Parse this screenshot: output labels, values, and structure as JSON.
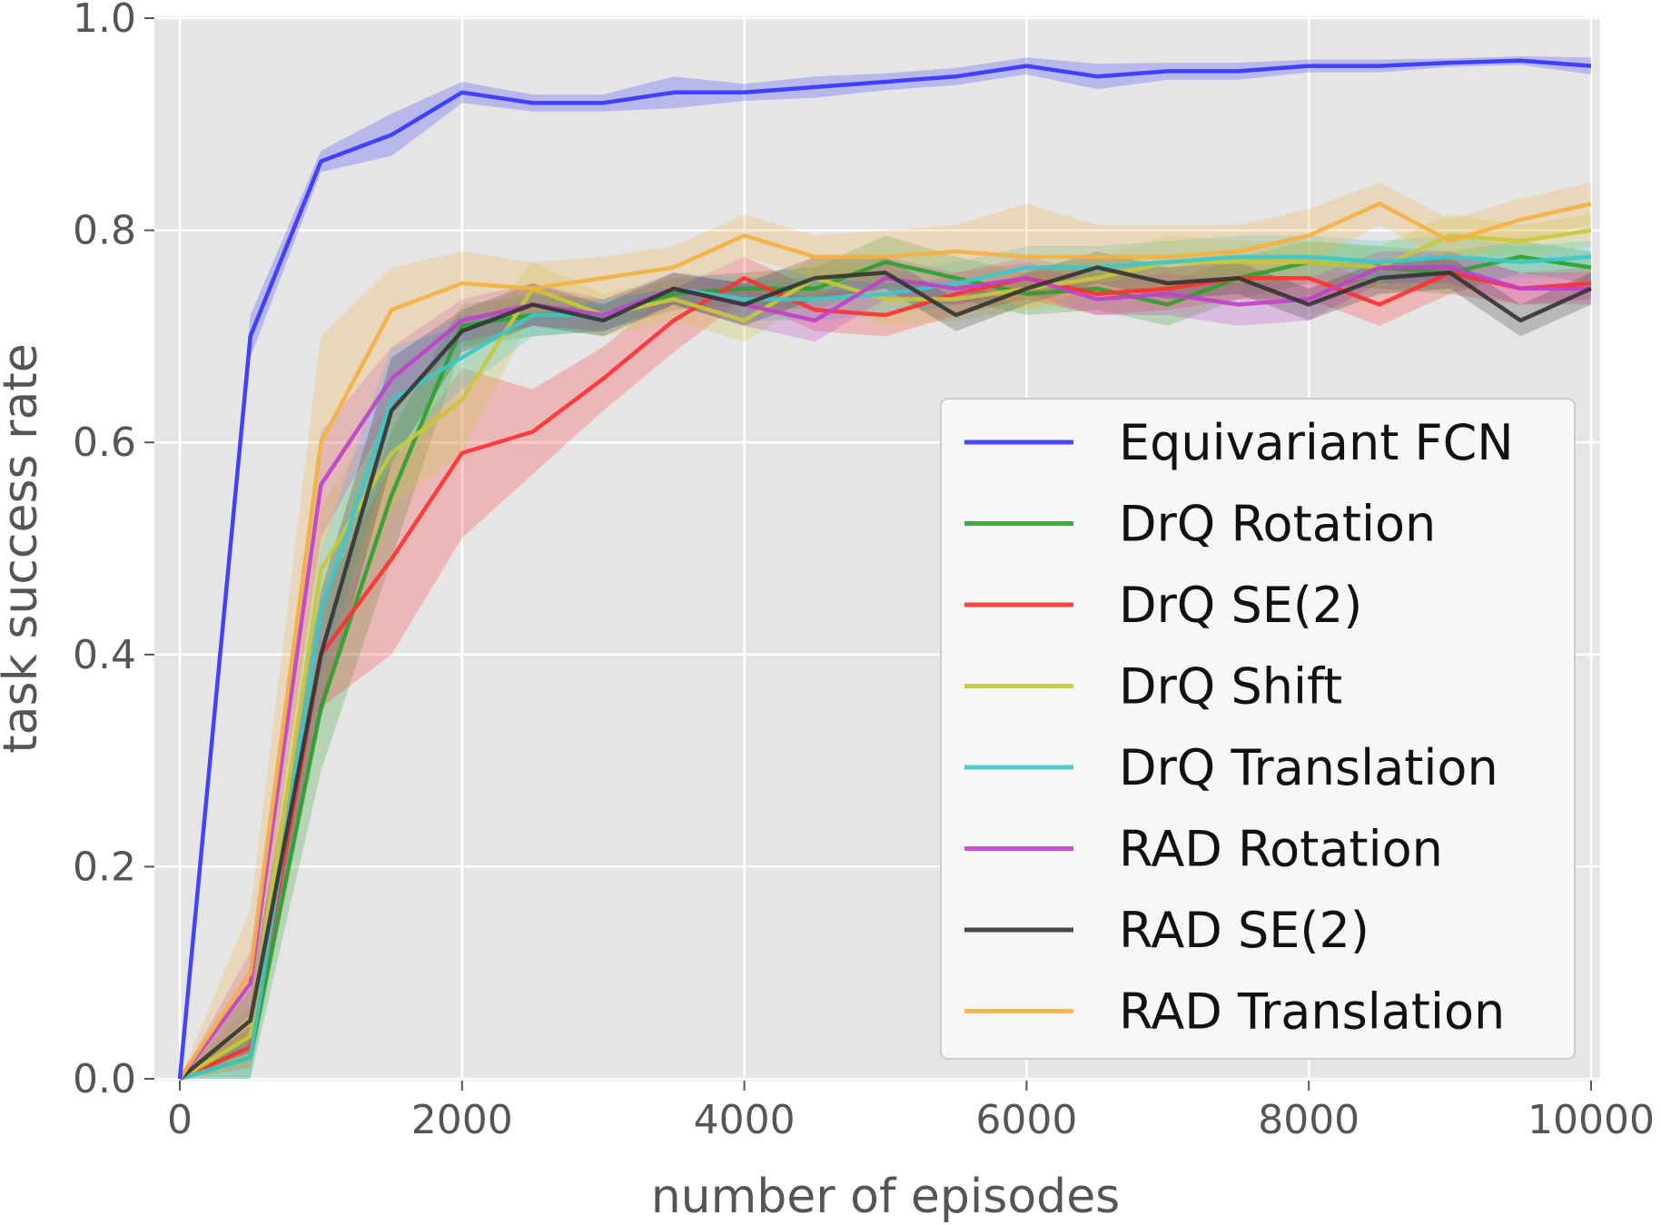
{
  "chart_data": {
    "type": "line",
    "title": "",
    "xlabel": "number of episodes",
    "ylabel": "task success rate",
    "xlim": [
      0,
      10000
    ],
    "ylim": [
      0.0,
      1.0
    ],
    "grid": true,
    "legend_position": "center-right",
    "x_ticks": [
      "0",
      "2000",
      "4000",
      "6000",
      "8000",
      "10000"
    ],
    "y_ticks": [
      "0.0",
      "0.2",
      "0.4",
      "0.6",
      "0.8",
      "1.0"
    ],
    "x": [
      0,
      500,
      1000,
      1500,
      2000,
      2500,
      3000,
      3500,
      4000,
      4500,
      5000,
      5500,
      6000,
      6500,
      7000,
      7500,
      8000,
      8500,
      9000,
      9500,
      10000
    ],
    "series": [
      {
        "name": "Equivariant FCN",
        "color": "#3333ff",
        "values": [
          0.0,
          0.7,
          0.865,
          0.89,
          0.93,
          0.92,
          0.92,
          0.93,
          0.93,
          0.935,
          0.94,
          0.945,
          0.955,
          0.945,
          0.95,
          0.95,
          0.955,
          0.955,
          0.958,
          0.96,
          0.955
        ],
        "band": [
          0.0,
          0.02,
          0.01,
          0.02,
          0.01,
          0.008,
          0.008,
          0.015,
          0.008,
          0.01,
          0.008,
          0.008,
          0.008,
          0.012,
          0.008,
          0.008,
          0.006,
          0.006,
          0.004,
          0.004,
          0.008
        ]
      },
      {
        "name": "DrQ Rotation",
        "color": "#2ca02c",
        "values": [
          0.0,
          0.02,
          0.35,
          0.55,
          0.71,
          0.72,
          0.72,
          0.74,
          0.745,
          0.745,
          0.77,
          0.755,
          0.74,
          0.745,
          0.73,
          0.755,
          0.77,
          0.765,
          0.76,
          0.775,
          0.765
        ],
        "band": [
          0.0,
          0.03,
          0.06,
          0.06,
          0.02,
          0.02,
          0.015,
          0.015,
          0.015,
          0.02,
          0.025,
          0.02,
          0.02,
          0.02,
          0.02,
          0.02,
          0.02,
          0.02,
          0.02,
          0.015,
          0.015
        ]
      },
      {
        "name": "DrQ SE(2)",
        "color": "#ff3030",
        "values": [
          0.0,
          0.03,
          0.4,
          0.49,
          0.59,
          0.61,
          0.66,
          0.715,
          0.755,
          0.725,
          0.72,
          0.74,
          0.755,
          0.74,
          0.745,
          0.755,
          0.755,
          0.73,
          0.76,
          0.745,
          0.75
        ],
        "band": [
          0.0,
          0.02,
          0.05,
          0.09,
          0.08,
          0.04,
          0.03,
          0.03,
          0.02,
          0.02,
          0.02,
          0.02,
          0.02,
          0.02,
          0.02,
          0.02,
          0.02,
          0.02,
          0.02,
          0.015,
          0.015
        ]
      },
      {
        "name": "DrQ Shift",
        "color": "#c8c83a",
        "values": [
          0.0,
          0.04,
          0.48,
          0.59,
          0.64,
          0.745,
          0.72,
          0.735,
          0.715,
          0.755,
          0.735,
          0.735,
          0.745,
          0.755,
          0.77,
          0.77,
          0.77,
          0.765,
          0.795,
          0.79,
          0.8
        ],
        "band": [
          0.0,
          0.03,
          0.06,
          0.05,
          0.05,
          0.025,
          0.02,
          0.02,
          0.02,
          0.02,
          0.025,
          0.02,
          0.02,
          0.02,
          0.025,
          0.02,
          0.02,
          0.02,
          0.02,
          0.015,
          0.015
        ]
      },
      {
        "name": "DrQ Translation",
        "color": "#3cc8c8",
        "values": [
          0.0,
          0.02,
          0.44,
          0.64,
          0.68,
          0.72,
          0.72,
          0.745,
          0.735,
          0.735,
          0.74,
          0.75,
          0.765,
          0.765,
          0.77,
          0.775,
          0.775,
          0.77,
          0.775,
          0.77,
          0.775
        ],
        "band": [
          0.0,
          0.02,
          0.06,
          0.05,
          0.03,
          0.02,
          0.015,
          0.015,
          0.02,
          0.02,
          0.02,
          0.02,
          0.02,
          0.02,
          0.02,
          0.02,
          0.02,
          0.02,
          0.02,
          0.015,
          0.015
        ]
      },
      {
        "name": "RAD Rotation",
        "color": "#c040c8",
        "values": [
          0.0,
          0.09,
          0.56,
          0.66,
          0.715,
          0.73,
          0.72,
          0.745,
          0.73,
          0.715,
          0.755,
          0.745,
          0.755,
          0.735,
          0.74,
          0.73,
          0.735,
          0.765,
          0.765,
          0.745,
          0.745
        ],
        "band": [
          0.0,
          0.03,
          0.05,
          0.03,
          0.02,
          0.02,
          0.015,
          0.015,
          0.02,
          0.02,
          0.02,
          0.015,
          0.015,
          0.015,
          0.02,
          0.02,
          0.02,
          0.015,
          0.015,
          0.015,
          0.015
        ]
      },
      {
        "name": "RAD SE(2)",
        "color": "#333333",
        "values": [
          0.0,
          0.055,
          0.4,
          0.63,
          0.705,
          0.73,
          0.715,
          0.745,
          0.73,
          0.755,
          0.76,
          0.72,
          0.745,
          0.765,
          0.75,
          0.755,
          0.73,
          0.755,
          0.76,
          0.715,
          0.745
        ],
        "band": [
          0.0,
          0.03,
          0.06,
          0.05,
          0.02,
          0.02,
          0.015,
          0.015,
          0.02,
          0.02,
          0.015,
          0.015,
          0.015,
          0.015,
          0.015,
          0.015,
          0.015,
          0.015,
          0.015,
          0.015,
          0.015
        ]
      },
      {
        "name": "RAD Translation",
        "color": "#f5b040",
        "values": [
          0.0,
          0.1,
          0.6,
          0.725,
          0.75,
          0.745,
          0.755,
          0.765,
          0.795,
          0.775,
          0.775,
          0.78,
          0.775,
          0.775,
          0.775,
          0.78,
          0.795,
          0.825,
          0.79,
          0.81,
          0.825
        ],
        "band": [
          0.0,
          0.06,
          0.1,
          0.04,
          0.03,
          0.025,
          0.02,
          0.02,
          0.02,
          0.02,
          0.025,
          0.025,
          0.05,
          0.03,
          0.03,
          0.025,
          0.025,
          0.02,
          0.02,
          0.02,
          0.02
        ]
      }
    ]
  }
}
